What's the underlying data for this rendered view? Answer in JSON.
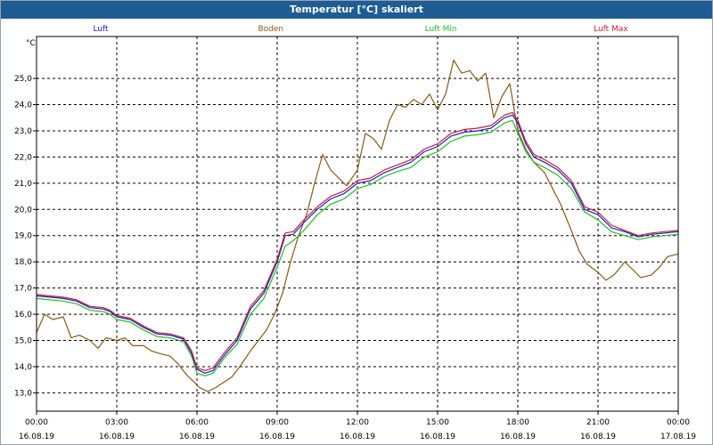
{
  "window": {
    "title": "Temperatur [°C] skaliert"
  },
  "chart_data": {
    "type": "line",
    "title": "Temperatur [°C] skaliert",
    "ylabel": "°C",
    "ylim": [
      12.3,
      26.6
    ],
    "xlim": [
      0,
      24
    ],
    "grid": true,
    "yticks": [
      {
        "v": 13,
        "label": "13,0"
      },
      {
        "v": 14,
        "label": "14,0"
      },
      {
        "v": 15,
        "label": "15,0"
      },
      {
        "v": 16,
        "label": "16,0"
      },
      {
        "v": 17,
        "label": "17,0"
      },
      {
        "v": 18,
        "label": "18,0"
      },
      {
        "v": 19,
        "label": "19,0"
      },
      {
        "v": 20,
        "label": "20,0"
      },
      {
        "v": 21,
        "label": "21,0"
      },
      {
        "v": 22,
        "label": "22,0"
      },
      {
        "v": 23,
        "label": "23,0"
      },
      {
        "v": 24,
        "label": "24,0"
      },
      {
        "v": 25,
        "label": "25,0"
      }
    ],
    "xticks": [
      {
        "v": 0,
        "time": "00:00",
        "date": "16.08.19"
      },
      {
        "v": 3,
        "time": "03:00",
        "date": "16.08.19"
      },
      {
        "v": 6,
        "time": "06:00",
        "date": "16.08.19"
      },
      {
        "v": 9,
        "time": "09:00",
        "date": "16.08.19"
      },
      {
        "v": 12,
        "time": "12:00",
        "date": "16.08.19"
      },
      {
        "v": 15,
        "time": "15:00",
        "date": "16.08.19"
      },
      {
        "v": 18,
        "time": "18:00",
        "date": "16.08.19"
      },
      {
        "v": 21,
        "time": "21:00",
        "date": "16.08.19"
      },
      {
        "v": 24,
        "time": "00:00",
        "date": "17.08.19"
      }
    ],
    "series": [
      {
        "name": "Luft",
        "color": "#1f1fcf",
        "points": [
          [
            0,
            16.7
          ],
          [
            0.5,
            16.65
          ],
          [
            1,
            16.6
          ],
          [
            1.5,
            16.5
          ],
          [
            2,
            16.25
          ],
          [
            2.5,
            16.2
          ],
          [
            2.75,
            16.1
          ],
          [
            3,
            15.9
          ],
          [
            3.5,
            15.8
          ],
          [
            4,
            15.5
          ],
          [
            4.5,
            15.25
          ],
          [
            5,
            15.2
          ],
          [
            5.5,
            15.05
          ],
          [
            5.8,
            14.5
          ],
          [
            6,
            13.9
          ],
          [
            6.3,
            13.75
          ],
          [
            6.6,
            13.85
          ],
          [
            7,
            14.4
          ],
          [
            7.5,
            15.0
          ],
          [
            8,
            16.2
          ],
          [
            8.5,
            16.8
          ],
          [
            9,
            18.0
          ],
          [
            9.3,
            19.0
          ],
          [
            9.6,
            19.05
          ],
          [
            10,
            19.5
          ],
          [
            10.5,
            20.0
          ],
          [
            11,
            20.4
          ],
          [
            11.5,
            20.6
          ],
          [
            12,
            21.0
          ],
          [
            12.5,
            21.1
          ],
          [
            13,
            21.4
          ],
          [
            13.5,
            21.6
          ],
          [
            14,
            21.8
          ],
          [
            14.5,
            22.2
          ],
          [
            15,
            22.4
          ],
          [
            15.5,
            22.8
          ],
          [
            16,
            22.95
          ],
          [
            16.5,
            23.0
          ],
          [
            17,
            23.1
          ],
          [
            17.5,
            23.5
          ],
          [
            17.8,
            23.6
          ],
          [
            18,
            23.3
          ],
          [
            18.3,
            22.5
          ],
          [
            18.6,
            22.0
          ],
          [
            19,
            21.8
          ],
          [
            19.5,
            21.5
          ],
          [
            20,
            21.0
          ],
          [
            20.5,
            20.0
          ],
          [
            21,
            19.8
          ],
          [
            21.5,
            19.3
          ],
          [
            22,
            19.15
          ],
          [
            22.5,
            18.95
          ],
          [
            23,
            19.05
          ],
          [
            23.5,
            19.1
          ],
          [
            24,
            19.15
          ]
        ]
      },
      {
        "name": "Boden",
        "color": "#8a5a14",
        "points": [
          [
            0,
            15.3
          ],
          [
            0.3,
            16.0
          ],
          [
            0.6,
            15.8
          ],
          [
            1,
            15.9
          ],
          [
            1.3,
            15.1
          ],
          [
            1.6,
            15.2
          ],
          [
            2,
            15.0
          ],
          [
            2.3,
            14.7
          ],
          [
            2.6,
            15.1
          ],
          [
            3,
            15.0
          ],
          [
            3.3,
            15.1
          ],
          [
            3.6,
            14.8
          ],
          [
            4,
            14.8
          ],
          [
            4.3,
            14.6
          ],
          [
            4.6,
            14.5
          ],
          [
            5,
            14.4
          ],
          [
            5.3,
            14.1
          ],
          [
            5.6,
            13.7
          ],
          [
            5.9,
            13.4
          ],
          [
            6.1,
            13.2
          ],
          [
            6.4,
            13.05
          ],
          [
            6.7,
            13.2
          ],
          [
            7,
            13.4
          ],
          [
            7.3,
            13.6
          ],
          [
            7.6,
            14.0
          ],
          [
            8,
            14.6
          ],
          [
            8.3,
            15.0
          ],
          [
            8.6,
            15.4
          ],
          [
            8.9,
            16.0
          ],
          [
            9.2,
            16.8
          ],
          [
            9.5,
            18.0
          ],
          [
            9.8,
            19.0
          ],
          [
            10.1,
            19.8
          ],
          [
            10.4,
            21.0
          ],
          [
            10.7,
            22.1
          ],
          [
            11,
            21.5
          ],
          [
            11.3,
            21.2
          ],
          [
            11.6,
            20.9
          ],
          [
            12,
            21.5
          ],
          [
            12.3,
            22.9
          ],
          [
            12.6,
            22.7
          ],
          [
            12.9,
            22.3
          ],
          [
            13.2,
            23.4
          ],
          [
            13.5,
            24.0
          ],
          [
            13.8,
            23.9
          ],
          [
            14.1,
            24.2
          ],
          [
            14.4,
            24.0
          ],
          [
            14.7,
            24.4
          ],
          [
            15,
            23.8
          ],
          [
            15.3,
            24.4
          ],
          [
            15.6,
            25.7
          ],
          [
            15.9,
            25.2
          ],
          [
            16.2,
            25.3
          ],
          [
            16.5,
            24.9
          ],
          [
            16.8,
            25.2
          ],
          [
            17.1,
            23.5
          ],
          [
            17.4,
            24.3
          ],
          [
            17.7,
            24.8
          ],
          [
            18,
            23.0
          ],
          [
            18.3,
            22.3
          ],
          [
            18.6,
            21.8
          ],
          [
            19,
            21.4
          ],
          [
            19.3,
            20.8
          ],
          [
            19.6,
            20.2
          ],
          [
            20,
            19.2
          ],
          [
            20.3,
            18.4
          ],
          [
            20.6,
            17.9
          ],
          [
            21,
            17.6
          ],
          [
            21.3,
            17.3
          ],
          [
            21.6,
            17.5
          ],
          [
            22,
            18.0
          ],
          [
            22.3,
            17.7
          ],
          [
            22.6,
            17.4
          ],
          [
            23,
            17.5
          ],
          [
            23.3,
            17.8
          ],
          [
            23.6,
            18.2
          ],
          [
            24,
            18.3
          ]
        ]
      },
      {
        "name": "Luft Min",
        "color": "#1fbf1f",
        "points": [
          [
            0,
            16.6
          ],
          [
            0.5,
            16.55
          ],
          [
            1,
            16.5
          ],
          [
            1.5,
            16.4
          ],
          [
            2,
            16.15
          ],
          [
            2.5,
            16.1
          ],
          [
            2.75,
            16.0
          ],
          [
            3,
            15.8
          ],
          [
            3.5,
            15.7
          ],
          [
            4,
            15.4
          ],
          [
            4.5,
            15.15
          ],
          [
            5,
            15.1
          ],
          [
            5.5,
            14.95
          ],
          [
            5.8,
            14.4
          ],
          [
            6,
            13.75
          ],
          [
            6.3,
            13.65
          ],
          [
            6.6,
            13.75
          ],
          [
            7,
            14.3
          ],
          [
            7.5,
            14.85
          ],
          [
            8,
            16.0
          ],
          [
            8.5,
            16.6
          ],
          [
            9,
            17.8
          ],
          [
            9.3,
            18.6
          ],
          [
            9.6,
            18.8
          ],
          [
            10,
            19.2
          ],
          [
            10.5,
            19.8
          ],
          [
            11,
            20.2
          ],
          [
            11.5,
            20.4
          ],
          [
            12,
            20.8
          ],
          [
            12.5,
            20.95
          ],
          [
            13,
            21.25
          ],
          [
            13.5,
            21.45
          ],
          [
            14,
            21.6
          ],
          [
            14.5,
            22.0
          ],
          [
            15,
            22.2
          ],
          [
            15.5,
            22.6
          ],
          [
            16,
            22.8
          ],
          [
            16.5,
            22.85
          ],
          [
            17,
            22.95
          ],
          [
            17.5,
            23.3
          ],
          [
            17.8,
            23.4
          ],
          [
            18,
            22.9
          ],
          [
            18.3,
            22.2
          ],
          [
            18.6,
            21.8
          ],
          [
            19,
            21.6
          ],
          [
            19.5,
            21.3
          ],
          [
            20,
            20.8
          ],
          [
            20.5,
            19.9
          ],
          [
            21,
            19.6
          ],
          [
            21.5,
            19.15
          ],
          [
            22,
            19.0
          ],
          [
            22.5,
            18.85
          ],
          [
            23,
            18.95
          ],
          [
            23.5,
            19.0
          ],
          [
            24,
            19.05
          ]
        ]
      },
      {
        "name": "Luft Max",
        "color": "#cc1f2a",
        "points": [
          [
            0,
            16.75
          ],
          [
            0.5,
            16.7
          ],
          [
            1,
            16.65
          ],
          [
            1.5,
            16.55
          ],
          [
            2,
            16.3
          ],
          [
            2.5,
            16.25
          ],
          [
            2.75,
            16.15
          ],
          [
            3,
            15.95
          ],
          [
            3.5,
            15.85
          ],
          [
            4,
            15.55
          ],
          [
            4.5,
            15.3
          ],
          [
            5,
            15.25
          ],
          [
            5.5,
            15.1
          ],
          [
            5.8,
            14.6
          ],
          [
            6,
            13.95
          ],
          [
            6.3,
            13.85
          ],
          [
            6.6,
            13.95
          ],
          [
            7,
            14.5
          ],
          [
            7.5,
            15.1
          ],
          [
            8,
            16.3
          ],
          [
            8.5,
            16.9
          ],
          [
            9,
            18.1
          ],
          [
            9.3,
            19.1
          ],
          [
            9.6,
            19.15
          ],
          [
            10,
            19.6
          ],
          [
            10.5,
            20.1
          ],
          [
            11,
            20.5
          ],
          [
            11.5,
            20.7
          ],
          [
            12,
            21.1
          ],
          [
            12.5,
            21.2
          ],
          [
            13,
            21.5
          ],
          [
            13.5,
            21.7
          ],
          [
            14,
            21.9
          ],
          [
            14.5,
            22.3
          ],
          [
            15,
            22.5
          ],
          [
            15.5,
            22.9
          ],
          [
            16,
            23.05
          ],
          [
            16.5,
            23.1
          ],
          [
            17,
            23.2
          ],
          [
            17.5,
            23.6
          ],
          [
            17.8,
            23.7
          ],
          [
            18,
            23.4
          ],
          [
            18.3,
            22.6
          ],
          [
            18.6,
            22.1
          ],
          [
            19,
            21.9
          ],
          [
            19.5,
            21.6
          ],
          [
            20,
            21.1
          ],
          [
            20.5,
            20.1
          ],
          [
            21,
            19.9
          ],
          [
            21.5,
            19.4
          ],
          [
            22,
            19.2
          ],
          [
            22.5,
            19.0
          ],
          [
            23,
            19.1
          ],
          [
            23.5,
            19.15
          ],
          [
            24,
            19.2
          ]
        ]
      }
    ]
  }
}
